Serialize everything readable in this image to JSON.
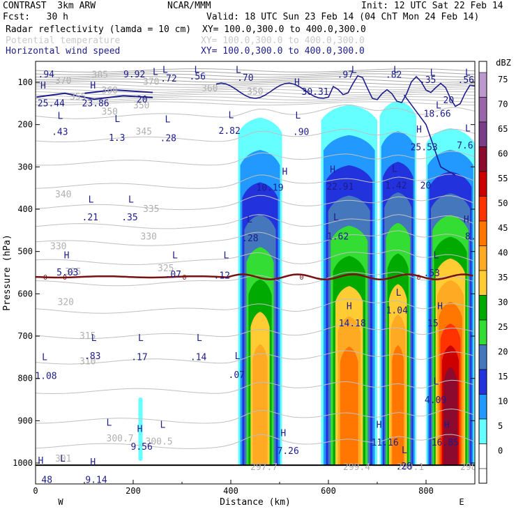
{
  "header": {
    "title": "CONTRAST  3km ARW",
    "center": "NCAR/MMM",
    "init": "Init: 12 UTC Sat 22 Feb 14",
    "fcst": "Fcst:   30 h",
    "valid": "Valid: 18 UTC Sun 23 Feb 14 (04 ChT Mon 24 Feb 14)",
    "field1": "Radar reflectivity (lamda = 10 cm)",
    "xy1": "XY= 100.0,300.0 to 400.0,300.0",
    "field2": "Potential temperature",
    "xy2": "XY= 100.0,300.0 to 400.0,300.0",
    "field3": "Horizontal wind speed",
    "xy3": "XY= 100.0,300.0 to 400.0,300.0"
  },
  "colors": {
    "theta": "#c0c0c0",
    "wind": "#1c1c8c",
    "freezing": "#7a1010",
    "ground": "#000000"
  },
  "chart_data": {
    "type": "heatmap",
    "xlabel": "Distance (km)",
    "ylabel": "Pressure (hPa)",
    "xlim": [
      0,
      900
    ],
    "ylim": [
      1050,
      70
    ],
    "xticks": [
      "0",
      "200",
      "400",
      "600",
      "800"
    ],
    "yticks": [
      "100",
      "200",
      "300",
      "400",
      "500",
      "600",
      "700",
      "800",
      "900",
      "1000"
    ],
    "xends": [
      "W",
      "E"
    ],
    "colorbar": {
      "unit": "dBZ",
      "levels": [
        "75",
        "70",
        "65",
        "60",
        "55",
        "50",
        "45",
        "40",
        "35",
        "30",
        "25",
        "20",
        "15",
        "10",
        "5",
        "0"
      ],
      "colors": [
        "#bb99cc",
        "#9966aa",
        "#7a3d88",
        "#8b0a2e",
        "#cc0000",
        "#ff3300",
        "#ff7700",
        "#ffaa22",
        "#ffcc33",
        "#00aa00",
        "#33dd33",
        "#4477bb",
        "#2233dd",
        "#2299ff",
        "#66ffff",
        "#ffffff"
      ]
    },
    "cells": [
      {
        "x0": 415,
        "x1": 505,
        "top": 190,
        "peak": 8
      },
      {
        "x0": 585,
        "x1": 700,
        "top": 160,
        "peak": 9
      },
      {
        "x0": 705,
        "x1": 780,
        "top": 150,
        "peak": 9
      },
      {
        "x0": 800,
        "x1": 900,
        "top": 215,
        "peak": 12
      }
    ],
    "shower": {
      "x": 215,
      "top": 845,
      "bottom": 995
    },
    "freezing_level": {
      "label": "0",
      "pressure": 560
    },
    "theta_labels": [
      {
        "t": "385",
        "x": 115,
        "p": 83
      },
      {
        "t": "370",
        "x": 40,
        "p": 97
      },
      {
        "t": "370",
        "x": 220,
        "p": 99
      },
      {
        "t": "360",
        "x": 135,
        "p": 120
      },
      {
        "t": "360",
        "x": 340,
        "p": 115
      },
      {
        "t": "355",
        "x": 70,
        "p": 135
      },
      {
        "t": "350",
        "x": 433,
        "p": 122
      },
      {
        "t": "350",
        "x": 200,
        "p": 155
      },
      {
        "t": "350",
        "x": 135,
        "p": 170
      },
      {
        "t": "345",
        "x": 205,
        "p": 217
      },
      {
        "t": "340",
        "x": 40,
        "p": 365
      },
      {
        "t": "335",
        "x": 220,
        "p": 400
      },
      {
        "t": "330",
        "x": 215,
        "p": 465
      },
      {
        "t": "330",
        "x": 30,
        "p": 488
      },
      {
        "t": "325",
        "x": 250,
        "p": 540
      },
      {
        "t": "325",
        "x": 60,
        "p": 548
      },
      {
        "t": "320",
        "x": 45,
        "p": 620
      },
      {
        "t": "315",
        "x": 90,
        "p": 700
      },
      {
        "t": "310",
        "x": 90,
        "p": 760
      },
      {
        "t": "301",
        "x": 40,
        "p": 990
      },
      {
        "t": "300.7",
        "x": 145,
        "p": 942
      },
      {
        "t": "300.5",
        "x": 225,
        "p": 950
      },
      {
        "t": "297.7",
        "x": 440,
        "p": 1010
      },
      {
        "t": "299.4",
        "x": 630,
        "p": 1010
      },
      {
        "t": "299.1",
        "x": 740,
        "p": 1010
      },
      {
        "t": "298.1",
        "x": 870,
        "p": 1010
      }
    ],
    "wind_labels": [
      {
        "t": ".94",
        "x": 5,
        "p": 82
      },
      {
        "t": "9.92",
        "x": 180,
        "p": 82
      },
      {
        "t": ".72",
        "x": 256,
        "p": 92
      },
      {
        "t": ".56",
        "x": 315,
        "p": 87
      },
      {
        "t": ".70",
        "x": 413,
        "p": 90
      },
      {
        "t": ".97",
        "x": 618,
        "p": 83
      },
      {
        "t": ".82",
        "x": 717,
        "p": 83
      },
      {
        "t": ".35",
        "x": 787,
        "p": 95
      },
      {
        "t": ".56",
        "x": 865,
        "p": 95
      },
      {
        "t": "25.44",
        "x": 4,
        "p": 150
      },
      {
        "t": "23.86",
        "x": 95,
        "p": 150
      },
      {
        "t": "20",
        "x": 207,
        "p": 141
      },
      {
        "t": "30.31",
        "x": 545,
        "p": 123
      },
      {
        "t": "20",
        "x": 835,
        "p": 143
      },
      {
        "t": "18.66",
        "x": 795,
        "p": 175
      },
      {
        "t": ".43",
        "x": 33,
        "p": 218
      },
      {
        "t": "1.3",
        "x": 150,
        "p": 232
      },
      {
        "t": ".28",
        "x": 255,
        "p": 233
      },
      {
        "t": "2.82",
        "x": 375,
        "p": 215
      },
      {
        "t": ".90",
        "x": 527,
        "p": 218
      },
      {
        "t": "25.53",
        "x": 768,
        "p": 254
      },
      {
        "t": "7.6",
        "x": 863,
        "p": 250
      },
      {
        "t": "10.19",
        "x": 452,
        "p": 350
      },
      {
        "t": "22.91",
        "x": 596,
        "p": 347
      },
      {
        "t": "1.42",
        "x": 716,
        "p": 345
      },
      {
        "t": "20",
        "x": 788,
        "p": 345
      },
      {
        "t": ".21",
        "x": 95,
        "p": 420
      },
      {
        "t": ".35",
        "x": 176,
        "p": 420
      },
      {
        "t": ".28",
        "x": 423,
        "p": 469
      },
      {
        "t": "1.62",
        "x": 597,
        "p": 465
      },
      {
        "t": "8.3",
        "x": 880,
        "p": 465
      },
      {
        "t": "5.03",
        "x": 43,
        "p": 550
      },
      {
        "t": ".07",
        "x": 265,
        "p": 555
      },
      {
        "t": ".12",
        "x": 365,
        "p": 557
      },
      {
        "t": ".53",
        "x": 795,
        "p": 552
      },
      {
        "t": "1.04",
        "x": 718,
        "p": 640
      },
      {
        "t": "14.18",
        "x": 621,
        "p": 670
      },
      {
        "t": "15",
        "x": 803,
        "p": 670
      },
      {
        "t": ".83",
        "x": 100,
        "p": 748
      },
      {
        "t": ".17",
        "x": 196,
        "p": 750
      },
      {
        "t": ".14",
        "x": 317,
        "p": 750
      },
      {
        "t": "1.08",
        "x": -1,
        "p": 795
      },
      {
        "t": ".07",
        "x": 395,
        "p": 792
      },
      {
        "t": "4.09",
        "x": 797,
        "p": 852
      },
      {
        "t": "7.26",
        "x": 495,
        "p": 972
      },
      {
        "t": "11.16",
        "x": 688,
        "p": 952
      },
      {
        "t": "16.85",
        "x": 811,
        "p": 952
      },
      {
        "t": "9.56",
        "x": 195,
        "p": 962
      },
      {
        "t": ".28",
        "x": 738,
        "p": 1008
      },
      {
        "t": "48",
        "x": 12,
        "p": 1040
      },
      {
        "t": "9.14",
        "x": 102,
        "p": 1040
      }
    ],
    "hl_markers": [
      {
        "t": "L",
        "x": 260,
        "p": 71
      },
      {
        "t": "L",
        "x": 325,
        "p": 71
      },
      {
        "t": "L",
        "x": 410,
        "p": 71
      },
      {
        "t": "L",
        "x": 240,
        "p": 76
      },
      {
        "t": "L",
        "x": 647,
        "p": 71
      },
      {
        "t": "L",
        "x": 733,
        "p": 71
      },
      {
        "t": "L",
        "x": 808,
        "p": 78
      },
      {
        "t": "L",
        "x": 880,
        "p": 78
      },
      {
        "t": "H",
        "x": 10,
        "p": 108
      },
      {
        "t": "H",
        "x": 112,
        "p": 108
      },
      {
        "t": "H",
        "x": 530,
        "p": 101
      },
      {
        "t": "L",
        "x": 820,
        "p": 155
      },
      {
        "t": "L",
        "x": 45,
        "p": 180
      },
      {
        "t": "L",
        "x": 162,
        "p": 187
      },
      {
        "t": "L",
        "x": 265,
        "p": 188
      },
      {
        "t": "L",
        "x": 395,
        "p": 178
      },
      {
        "t": "L",
        "x": 532,
        "p": 179
      },
      {
        "t": "H",
        "x": 780,
        "p": 212
      },
      {
        "t": "L",
        "x": 880,
        "p": 210
      },
      {
        "t": "H",
        "x": 505,
        "p": 312
      },
      {
        "t": "H",
        "x": 603,
        "p": 307
      },
      {
        "t": "L",
        "x": 730,
        "p": 305
      },
      {
        "t": "L",
        "x": 108,
        "p": 378
      },
      {
        "t": "L",
        "x": 190,
        "p": 378
      },
      {
        "t": "L",
        "x": 433,
        "p": 425
      },
      {
        "t": "L",
        "x": 610,
        "p": 420
      },
      {
        "t": "H",
        "x": 877,
        "p": 425
      },
      {
        "t": "H",
        "x": 58,
        "p": 510
      },
      {
        "t": "L",
        "x": 280,
        "p": 510
      },
      {
        "t": "L",
        "x": 385,
        "p": 510
      },
      {
        "t": "L",
        "x": 815,
        "p": 510
      },
      {
        "t": "L",
        "x": 738,
        "p": 598
      },
      {
        "t": "H",
        "x": 637,
        "p": 630
      },
      {
        "t": "H",
        "x": 823,
        "p": 630
      },
      {
        "t": "L",
        "x": 114,
        "p": 705
      },
      {
        "t": "L",
        "x": 210,
        "p": 705
      },
      {
        "t": "L",
        "x": 330,
        "p": 705
      },
      {
        "t": "L",
        "x": 13,
        "p": 750
      },
      {
        "t": "L",
        "x": 408,
        "p": 748
      },
      {
        "t": "L",
        "x": 815,
        "p": 808
      },
      {
        "t": "H",
        "x": 502,
        "p": 930
      },
      {
        "t": "H",
        "x": 698,
        "p": 910
      },
      {
        "t": "H",
        "x": 837,
        "p": 910
      },
      {
        "t": "H",
        "x": 208,
        "p": 920
      },
      {
        "t": "L",
        "x": 145,
        "p": 905
      },
      {
        "t": "L",
        "x": 255,
        "p": 910
      },
      {
        "t": "L",
        "x": 750,
        "p": 970
      },
      {
        "t": "H",
        "x": 5,
        "p": 995
      },
      {
        "t": "H",
        "x": 112,
        "p": 998
      },
      {
        "t": "L",
        "x": 50,
        "p": 990
      }
    ]
  }
}
